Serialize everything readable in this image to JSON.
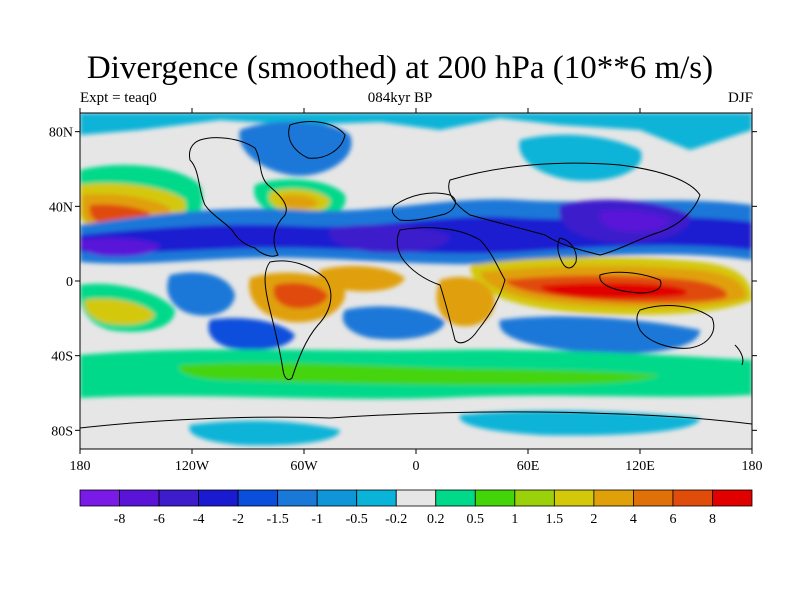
{
  "title": "Divergence (smoothed) at 200 hPa (10**6 m/s)",
  "left_subtitle": "Expt = teaq0",
  "center_subtitle": "084kyr BP",
  "right_subtitle": "DJF",
  "map": {
    "type": "filled-contour",
    "projection": "cylindrical-equidistant",
    "lon_range": [
      -180,
      180
    ],
    "lat_range": [
      -90,
      90
    ],
    "lat_ticks": [
      {
        "value": 80,
        "label": "80N"
      },
      {
        "value": 40,
        "label": "40N"
      },
      {
        "value": 0,
        "label": "0"
      },
      {
        "value": -40,
        "label": "40S"
      },
      {
        "value": -80,
        "label": "80S"
      }
    ],
    "lon_ticks": [
      {
        "value": -180,
        "label": "180"
      },
      {
        "value": -120,
        "label": "120W"
      },
      {
        "value": -60,
        "label": "60W"
      },
      {
        "value": 0,
        "label": "0"
      },
      {
        "value": 60,
        "label": "60E"
      },
      {
        "value": 120,
        "label": "120E"
      },
      {
        "value": 180,
        "label": "180"
      }
    ]
  },
  "colorbar": {
    "colors": [
      "#7a1ae6",
      "#5a14d8",
      "#3d1ccc",
      "#1a1ad0",
      "#0a4fdc",
      "#1a78d8",
      "#0f96d9",
      "#0ab4d8",
      "#e6e6e6",
      "#00d98a",
      "#44d40a",
      "#9bd10a",
      "#d4c80a",
      "#e0a00a",
      "#e07008",
      "#e04c0a",
      "#e00000"
    ],
    "labels": [
      "-8",
      "-6",
      "-4",
      "-2",
      "-1.5",
      "-1",
      "-0.5",
      "-0.2",
      "0.2",
      "0.5",
      "1",
      "1.5",
      "2",
      "4",
      "6",
      "8"
    ]
  }
}
